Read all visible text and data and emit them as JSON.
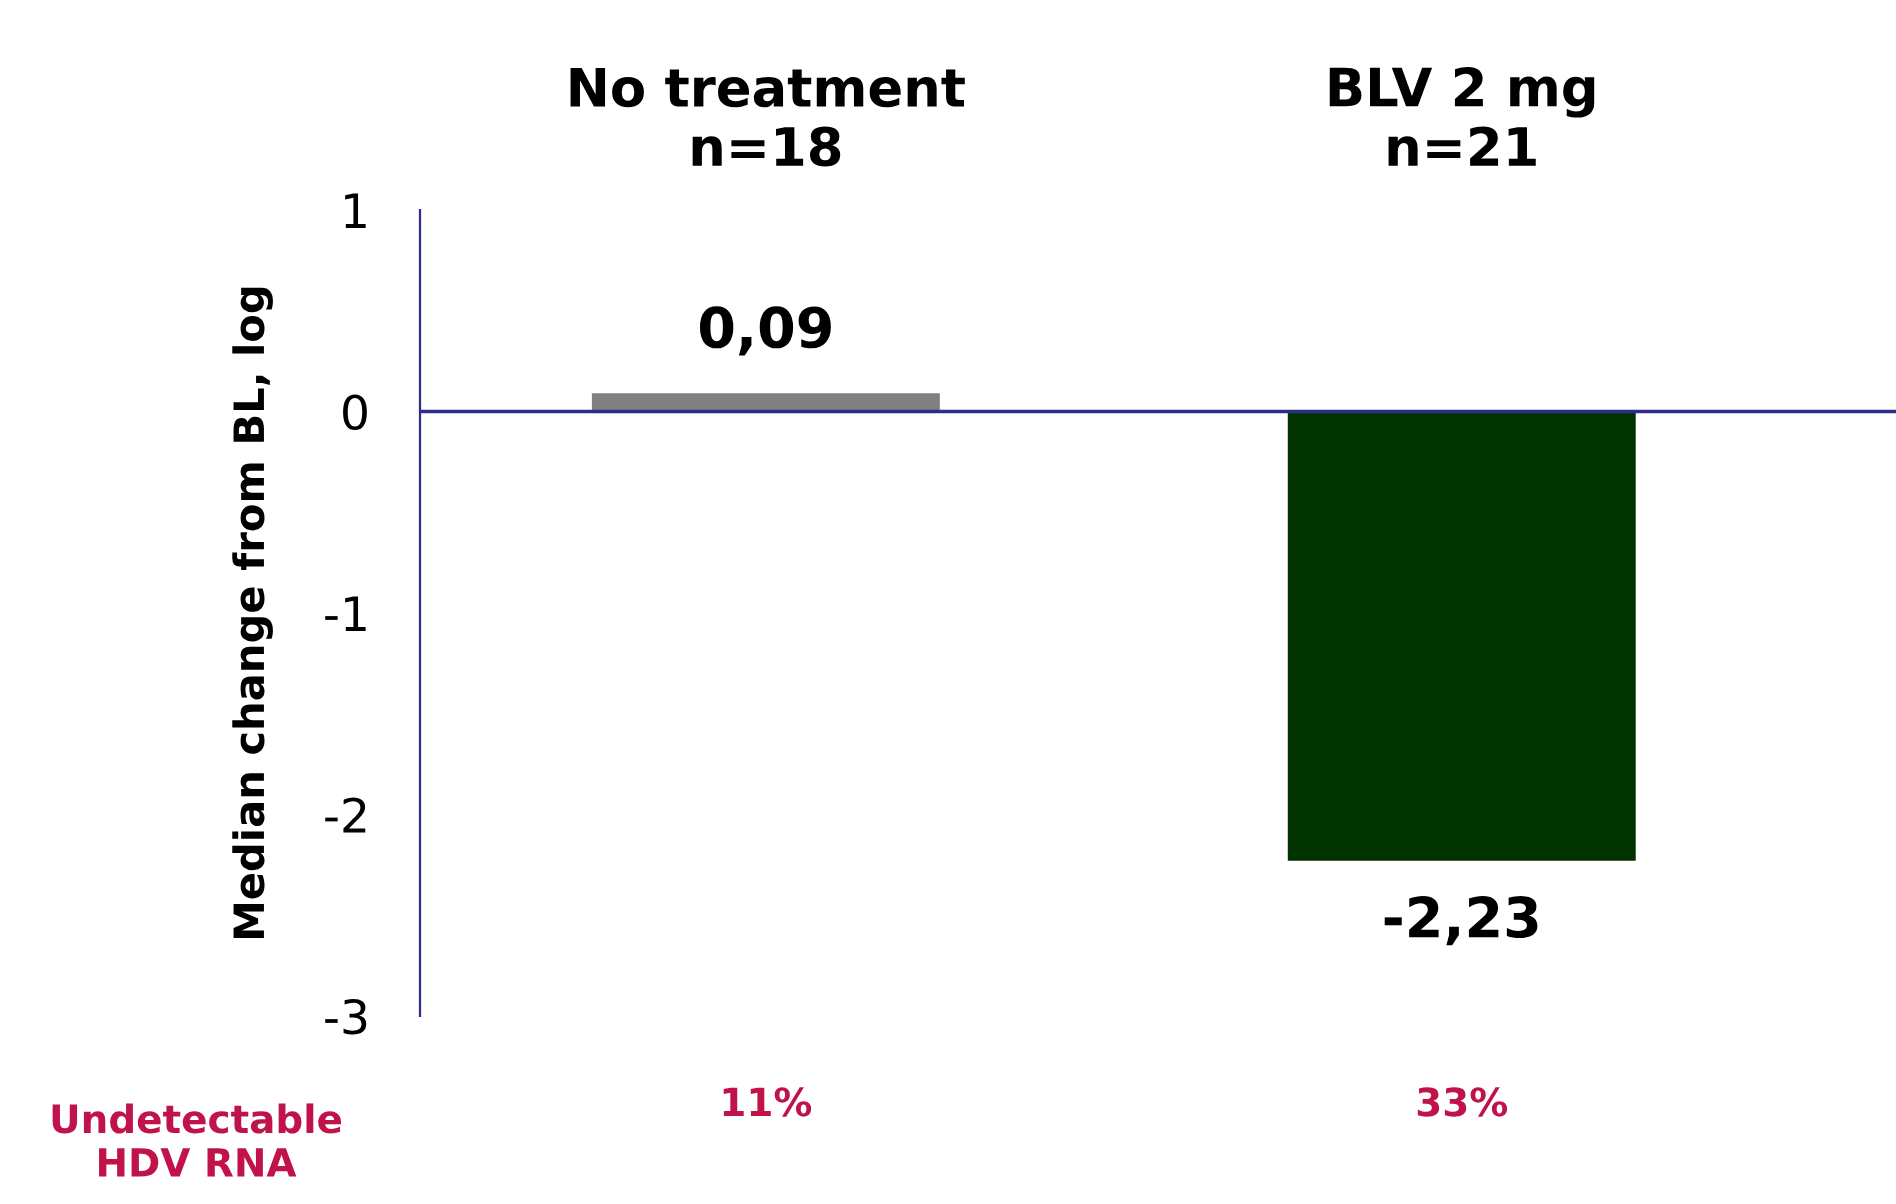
{
  "chart_data": {
    "type": "bar",
    "ylabel": "Median change from BL, log",
    "categories": [
      "No treatment\nn=18",
      "BLV 2 mg\nn=21"
    ],
    "values": [
      0.09,
      -2.23
    ],
    "colors": [
      "#808080",
      "#003300"
    ],
    "value_labels": [
      "0,09",
      "-2,23"
    ],
    "ref_lines": [
      {
        "axis": "y",
        "value": 0,
        "color": "#2e2e8a"
      }
    ],
    "ylim": [
      -3,
      1
    ],
    "yticks": [
      1,
      0,
      -1,
      -2,
      -3
    ],
    "grid": false,
    "legend": false,
    "annotations": [
      "Undetectable\nHDV RNA",
      "11%",
      "33%"
    ]
  }
}
